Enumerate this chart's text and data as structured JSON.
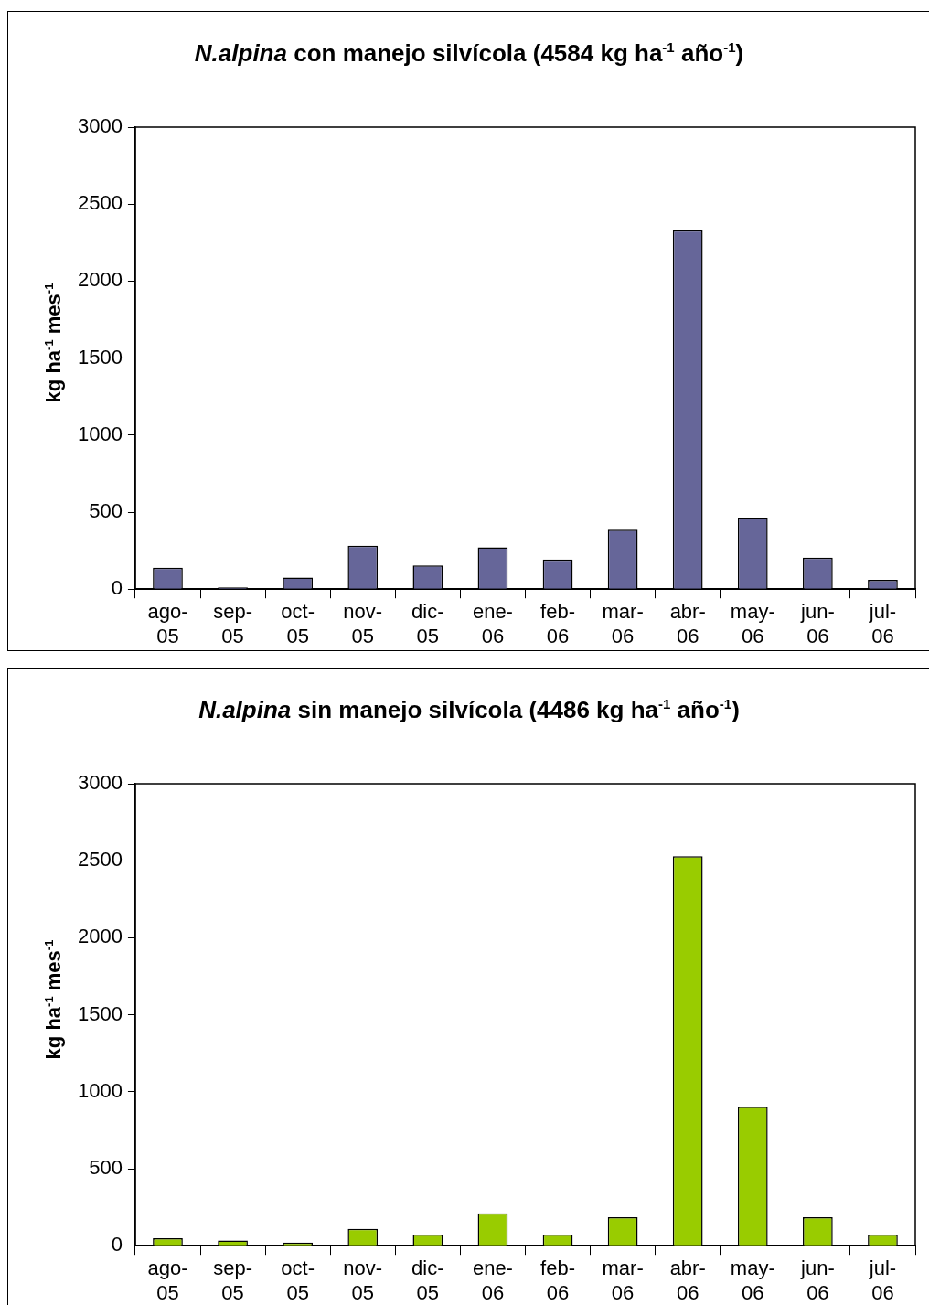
{
  "chart_data": [
    {
      "type": "bar",
      "title": "N.alpina con manejo silvícola (4584 kg ha$^{-1}$ año$^{-1}$)",
      "ylabel": "kg ha$^{-1}$ mes$^{-1}$",
      "categories": [
        "ago-05",
        "sep-05",
        "oct-05",
        "nov-05",
        "dic-05",
        "ene-06",
        "feb-06",
        "mar-06",
        "abr-06",
        "may-06",
        "jun-06",
        "jul-06"
      ],
      "values": [
        139,
        11,
        75,
        282,
        154,
        271,
        193,
        386,
        2330,
        464,
        204,
        61
      ],
      "color": "#666699",
      "ylim": [
        0,
        3000
      ],
      "yticks": [
        0,
        500,
        1000,
        1500,
        2000,
        2500,
        3000
      ],
      "grid": false,
      "legend": false
    },
    {
      "type": "bar",
      "title": "N.alpina sin manejo silvícola (4486 kg ha$^{-1}$ año$^{-1}$)",
      "ylabel": "kg ha$^{-1}$ mes$^{-1}$",
      "categories": [
        "ago-05",
        "sep-05",
        "oct-05",
        "nov-05",
        "dic-05",
        "ene-06",
        "feb-06",
        "mar-06",
        "abr-06",
        "may-06",
        "jun-06",
        "jul-06"
      ],
      "values": [
        48,
        34,
        21,
        110,
        72,
        210,
        72,
        186,
        2530,
        903,
        186,
        72
      ],
      "color": "#99cc00",
      "ylim": [
        0,
        3000
      ],
      "yticks": [
        0,
        500,
        1000,
        1500,
        2000,
        2500,
        3000
      ],
      "grid": false,
      "legend": false
    }
  ]
}
